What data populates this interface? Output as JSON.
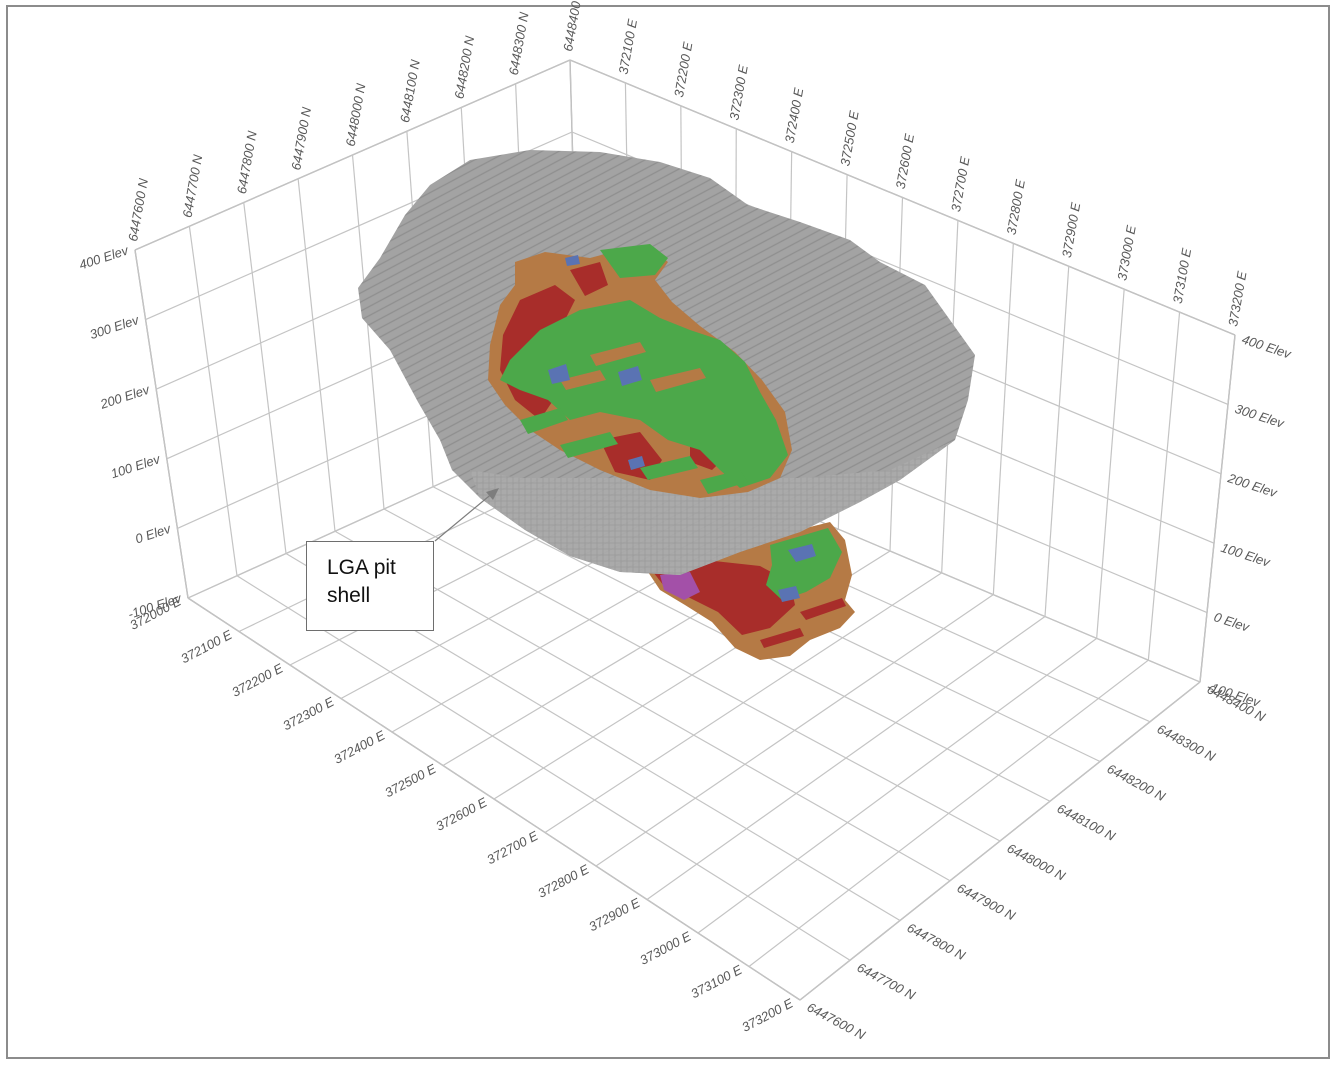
{
  "callout": {
    "text": "LGA pit\nshell"
  },
  "axes": {
    "northing_top": [
      "6447600 N",
      "6447700 N",
      "6447800 N",
      "6447900 N",
      "6448000 N",
      "6448100 N",
      "6448200 N",
      "6448300 N",
      "6448400 N"
    ],
    "easting_top": [
      "372100 E",
      "372200 E",
      "372300 E",
      "372400 E",
      "372500 E",
      "372600 E",
      "372700 E",
      "372800 E",
      "372900 E",
      "373000 E",
      "373100 E",
      "373200 E"
    ],
    "elev_left": [
      "400 Elev",
      "300 Elev",
      "200 Elev",
      "100 Elev",
      "0 Elev",
      "-100 Elev"
    ],
    "elev_right": [
      "400 Elev",
      "300 Elev",
      "200 Elev",
      "100 Elev",
      "0 Elev",
      "-100 Elev"
    ],
    "easting_bottom": [
      "372000 E",
      "372100 E",
      "372200 E",
      "372300 E",
      "372400 E",
      "372500 E",
      "372600 E",
      "372700 E",
      "372800 E",
      "372900 E",
      "373000 E",
      "373100 E",
      "373200 E"
    ],
    "northing_bottom": [
      "6448400 N",
      "6448300 N",
      "6448200 N",
      "6448100 N",
      "6448000 N",
      "6447900 N",
      "6447800 N",
      "6447700 N",
      "6447600 N"
    ]
  },
  "colors": {
    "pit_shell": "#a3a3a3",
    "green_domain": "#4ca84a",
    "brown_domain": "#b57a45",
    "red_domain": "#a82d2a",
    "blue_domain": "#5a73b3",
    "purple_domain": "#a350a8"
  }
}
